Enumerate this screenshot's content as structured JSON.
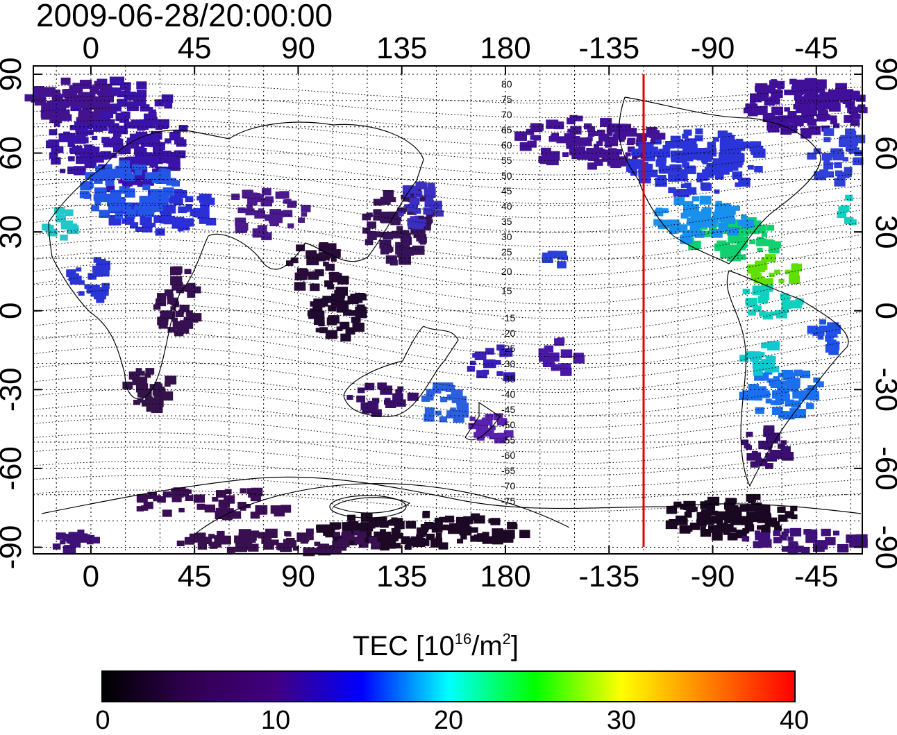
{
  "timestamp": "2009-06-28/20:00:00",
  "map": {
    "type": "global TEC map",
    "lon_ticks": [
      "0",
      "45",
      "90",
      "135",
      "180",
      "-135",
      "-90",
      "-45"
    ],
    "lat_ticks_left": [
      "90",
      "60",
      "30",
      "0",
      "-30",
      "-60",
      "-90"
    ],
    "lat_ticks_right": [
      "90",
      "60",
      "30",
      "0",
      "-30",
      "-60",
      "-90"
    ],
    "grid": "dotted",
    "marker_line": {
      "longitude": -120,
      "color": "#e00000"
    },
    "contour_labels_north": [
      "80",
      "75",
      "70",
      "65",
      "60",
      "55",
      "50",
      "45",
      "40",
      "35",
      "30",
      "25",
      "20",
      "15"
    ],
    "contour_labels_south": [
      "-15",
      "-20",
      "-25",
      "-30",
      "-35",
      "-40",
      "-45",
      "-50",
      "-55",
      "-60",
      "-65",
      "-70",
      "-75"
    ]
  },
  "colorbar": {
    "title_prefix": "TEC  [10",
    "title_exp": "16",
    "title_mid": "/m",
    "title_exp2": "2",
    "title_suffix": "]",
    "tick_labels": [
      "0",
      "10",
      "20",
      "30",
      "40"
    ],
    "range": [
      0,
      40
    ],
    "colors": [
      "#000000",
      "#300050",
      "#400080",
      "#0000ff",
      "#00ffff",
      "#00ff00",
      "#ffff00",
      "#ff8000",
      "#ff0000"
    ]
  }
}
